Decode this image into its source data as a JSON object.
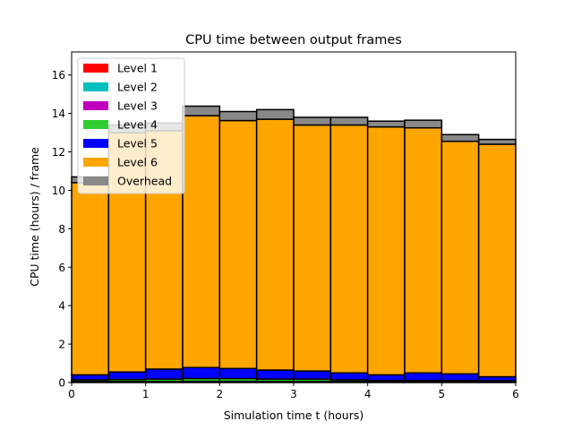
{
  "chart_data": {
    "type": "bar",
    "stacked": true,
    "title": "CPU time between output frames",
    "xlabel": "Simulation time t (hours)",
    "ylabel": "CPU time (hours) / frame",
    "xlim": [
      0,
      6
    ],
    "ylim": [
      0,
      17.2
    ],
    "xticks": [
      "0",
      "1",
      "2",
      "3",
      "4",
      "5",
      "6"
    ],
    "yticks": [
      "0",
      "2",
      "4",
      "6",
      "8",
      "10",
      "12",
      "14",
      "16"
    ],
    "bin_width": 0.5,
    "x": [
      0,
      0.5,
      1,
      1.5,
      2,
      2.5,
      3,
      3.5,
      4,
      4.5,
      5,
      5.5
    ],
    "legend_position": "top-left",
    "series": [
      {
        "name": "Level 1",
        "color": "#ff0000",
        "values": [
          0.02,
          0.02,
          0.02,
          0.02,
          0.02,
          0.02,
          0.02,
          0.02,
          0.02,
          0.02,
          0.02,
          0.02
        ]
      },
      {
        "name": "Level 2",
        "color": "#00bfbf",
        "values": [
          0.02,
          0.02,
          0.02,
          0.02,
          0.02,
          0.02,
          0.02,
          0.02,
          0.02,
          0.02,
          0.02,
          0.02
        ]
      },
      {
        "name": "Level 3",
        "color": "#bf00bf",
        "values": [
          0.02,
          0.02,
          0.02,
          0.02,
          0.02,
          0.02,
          0.02,
          0.02,
          0.02,
          0.02,
          0.02,
          0.02
        ]
      },
      {
        "name": "Level 4",
        "color": "#32cd32",
        "values": [
          0.08,
          0.1,
          0.12,
          0.15,
          0.15,
          0.12,
          0.12,
          0.08,
          0.05,
          0.05,
          0.05,
          0.03
        ]
      },
      {
        "name": "Level 5",
        "color": "#0000ff",
        "values": [
          0.26,
          0.39,
          0.52,
          0.57,
          0.52,
          0.47,
          0.42,
          0.36,
          0.29,
          0.39,
          0.34,
          0.21
        ]
      },
      {
        "name": "Level 6",
        "color": "#ffa500",
        "values": [
          10.0,
          12.45,
          12.4,
          13.1,
          12.9,
          13.05,
          12.8,
          12.9,
          12.9,
          12.75,
          12.1,
          12.1
        ]
      },
      {
        "name": "Overhead",
        "color": "#888888",
        "values": [
          0.3,
          0.4,
          0.4,
          0.5,
          0.47,
          0.5,
          0.4,
          0.4,
          0.3,
          0.4,
          0.35,
          0.25
        ]
      }
    ]
  }
}
